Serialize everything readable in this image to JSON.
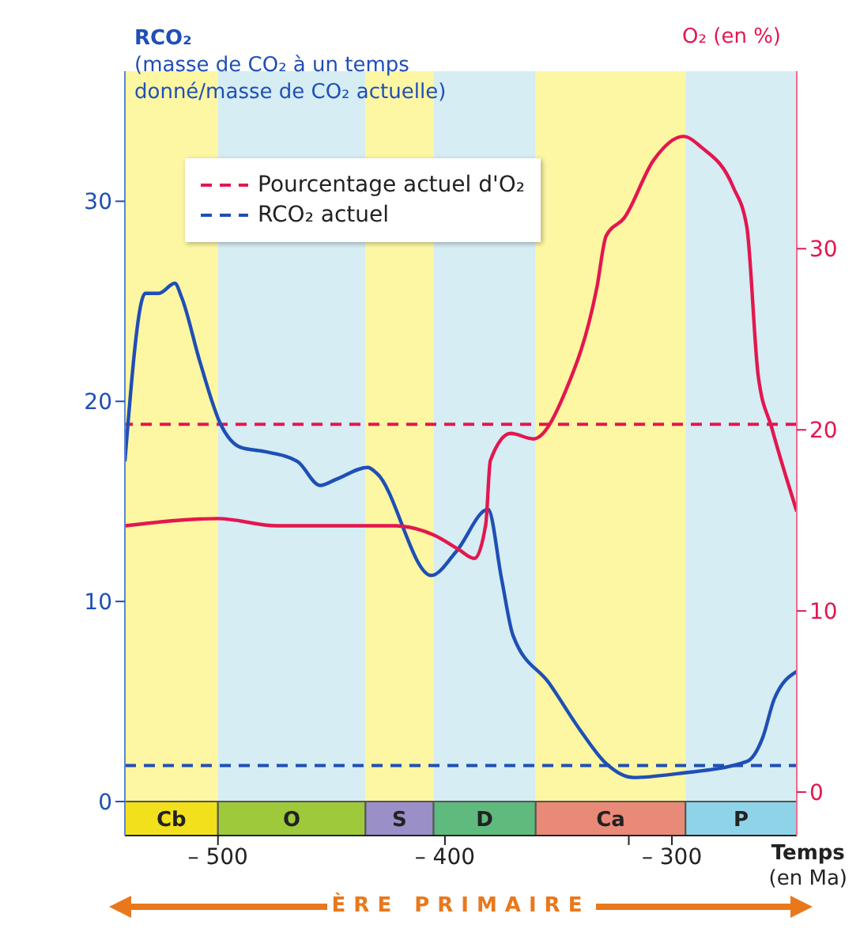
{
  "chart_data": {
    "type": "line",
    "xlabel": "Temps\n(en Ma)",
    "ylabel": "RCO₂\n(masse de CO₂ à un temps\ndonné/masse de CO₂ actuelle)",
    "y2label": "O₂ (en %)",
    "xlim": [
      -541,
      -245
    ],
    "xticks": [
      {
        "value": -500,
        "label": "– 500"
      },
      {
        "value": -400,
        "label": "– 400"
      },
      {
        "value": -319,
        "label": null
      },
      {
        "value": -300,
        "label": "– 300"
      }
    ],
    "ylim": [
      -1.7,
      36.5
    ],
    "yticks": [
      0,
      10,
      20,
      30
    ],
    "y2lim": [
      -2.4,
      39.8
    ],
    "y2ticks": [
      0,
      10,
      20,
      30
    ],
    "series": [
      {
        "color": "#1f4fb5",
        "axis": "y",
        "x": [
          -541,
          -532,
          -526,
          -519,
          -516,
          -508,
          -499,
          -490,
          -480,
          -465,
          -455,
          -448,
          -434,
          -430,
          -406,
          -395,
          -381,
          -375,
          -370,
          -354,
          -340,
          -329,
          -317,
          -297,
          -267,
          -260,
          -255,
          -245
        ],
        "values": [
          17.0,
          25.4,
          25.4,
          25.9,
          25.2,
          22.0,
          18.9,
          17.7,
          17.5,
          17.0,
          15.8,
          16.1,
          16.7,
          16.4,
          11.3,
          12.5,
          14.6,
          11.1,
          8.3,
          5.9,
          3.5,
          1.9,
          1.2,
          1.4,
          2.0,
          3.2,
          5.1,
          6.5
        ]
      },
      {
        "color": "#e3174f",
        "axis": "y2",
        "x": [
          -541,
          -500,
          -474,
          -422,
          -405,
          -394,
          -387,
          -382,
          -380,
          -371,
          -361,
          -347,
          -333,
          -329,
          -321,
          -308,
          -295,
          -287,
          -273,
          -267,
          -262,
          -256,
          -245
        ],
        "values": [
          14.7,
          15.1,
          14.7,
          14.7,
          14.2,
          13.4,
          12.9,
          14.8,
          18.3,
          19.8,
          19.5,
          22.1,
          27.9,
          30.7,
          31.7,
          34.9,
          36.2,
          35.6,
          33.4,
          31.2,
          23.0,
          20.1,
          15.5
        ]
      }
    ],
    "ref_lines": [
      {
        "axis": "y2",
        "value": 20.3,
        "label": "Pourcentage actuel d'O₂",
        "color": "#e3174f",
        "line_style": "dashed"
      },
      {
        "axis": "y",
        "value": 1.8,
        "label": "RCO₂ actuel",
        "color": "#1f4fb5",
        "line_style": "dashed"
      }
    ],
    "bands": [
      {
        "axis": "x",
        "from": -541,
        "to": -500,
        "color": "#fdf6a3"
      },
      {
        "axis": "x",
        "from": -500,
        "to": -435,
        "color": "#d5edf3"
      },
      {
        "axis": "x",
        "from": -435,
        "to": -405,
        "color": "#fdf6a3"
      },
      {
        "axis": "x",
        "from": -405,
        "to": -360,
        "color": "#d5edf3"
      },
      {
        "axis": "x",
        "from": -360,
        "to": -294,
        "color": "#fdf6a3"
      },
      {
        "axis": "x",
        "from": -294,
        "to": -245,
        "color": "#d5edf3"
      },
      {
        "axis": "x",
        "from": -541,
        "to": -500,
        "label": "Cb",
        "color": "#f3e01c"
      },
      {
        "axis": "x",
        "from": -500,
        "to": -435,
        "label": "O",
        "color": "#9dc93a"
      },
      {
        "axis": "x",
        "from": -435,
        "to": -405,
        "label": "S",
        "color": "#9a8fc6"
      },
      {
        "axis": "x",
        "from": -405,
        "to": -360,
        "label": "D",
        "color": "#5fba7d"
      },
      {
        "axis": "x",
        "from": -360,
        "to": -294,
        "label": "Ca",
        "color": "#e98a78"
      },
      {
        "axis": "x",
        "from": -294,
        "to": -245,
        "label": "P",
        "color": "#8fd3e8"
      }
    ],
    "annotations": [
      "ÈRE PRIMAIRE"
    ],
    "legend": "top left",
    "grid": false
  }
}
